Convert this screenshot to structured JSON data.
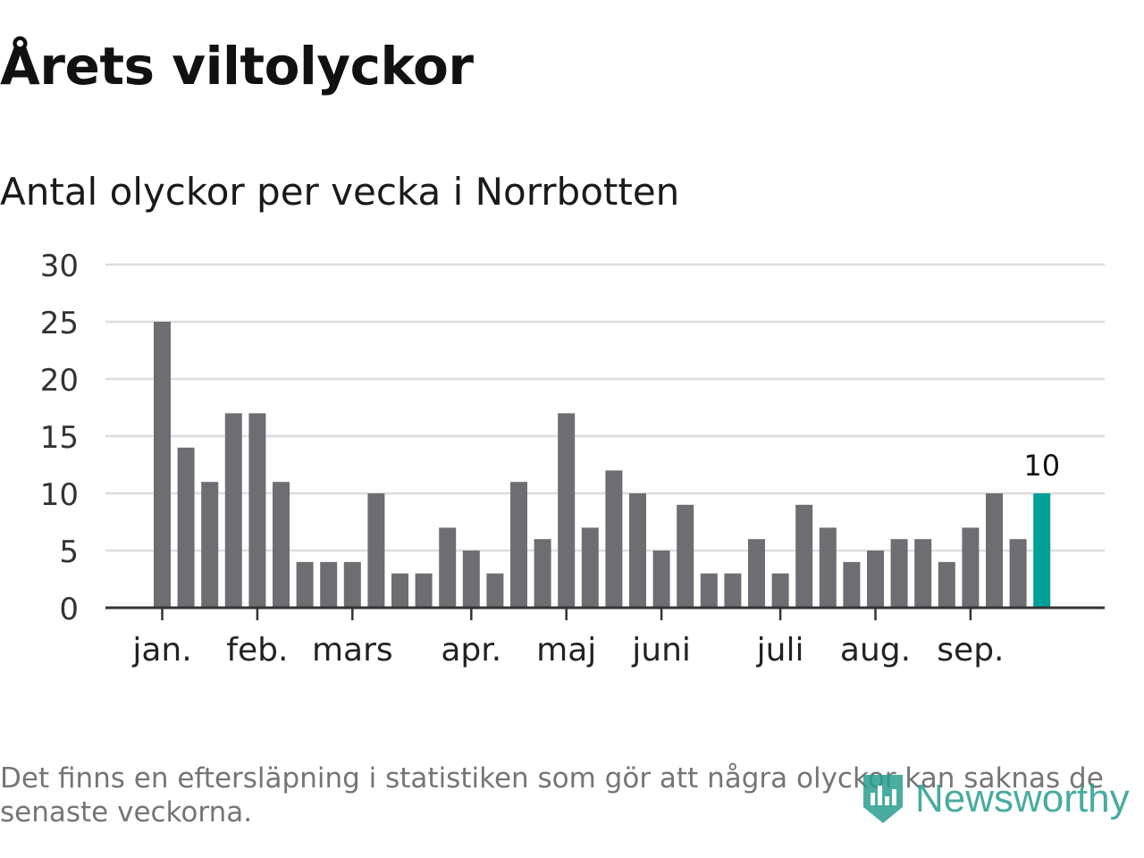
{
  "header": {
    "title": "Årets viltolyckor",
    "subtitle": "Antal olyckor per vecka i Norrbotten"
  },
  "footnote": "Det finns en eftersläpning i statistiken som gör att några olyckor kan saknas de senaste veckorna.",
  "brand": {
    "name": "Newsworthy",
    "color": "#2a9d8f",
    "icon": "bar-chart-shield-icon"
  },
  "colors": {
    "bar": "#6e6d72",
    "highlight": "#00a097",
    "grid": "#dddddd",
    "axis": "#333333"
  },
  "chart_data": {
    "type": "bar",
    "title": "Antal olyckor per vecka i Norrbotten",
    "xlabel": "",
    "ylabel": "",
    "ylim": [
      0,
      30
    ],
    "yticks": [
      0,
      5,
      10,
      15,
      20,
      25,
      30
    ],
    "values": [
      25,
      14,
      11,
      17,
      17,
      11,
      4,
      4,
      4,
      10,
      3,
      3,
      7,
      5,
      3,
      11,
      6,
      17,
      7,
      12,
      10,
      5,
      9,
      3,
      3,
      6,
      3,
      9,
      7,
      4,
      5,
      6,
      6,
      4,
      7,
      10,
      6,
      10
    ],
    "highlight_index": 37,
    "highlight_label": "10",
    "month_labels": [
      {
        "label": "jan.",
        "bar_index": 0
      },
      {
        "label": "feb.",
        "bar_index": 4
      },
      {
        "label": "mars",
        "bar_index": 8
      },
      {
        "label": "apr.",
        "bar_index": 13
      },
      {
        "label": "maj",
        "bar_index": 17
      },
      {
        "label": "juni",
        "bar_index": 21
      },
      {
        "label": "juli",
        "bar_index": 26
      },
      {
        "label": "aug.",
        "bar_index": 30
      },
      {
        "label": "sep.",
        "bar_index": 34
      }
    ],
    "grid": true,
    "legend": "none"
  }
}
